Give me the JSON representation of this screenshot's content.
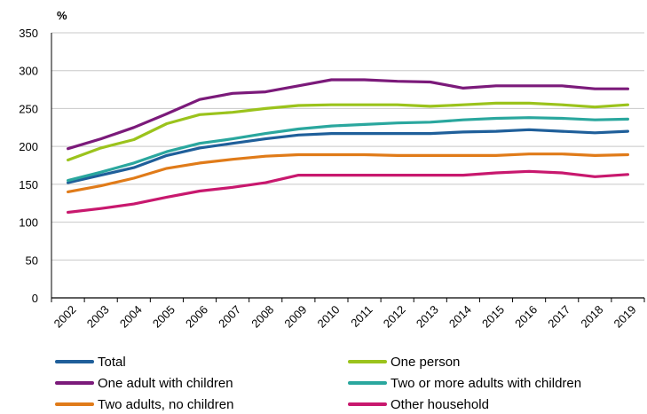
{
  "chart_data": {
    "type": "line",
    "unit_label": "%",
    "x": [
      "2002",
      "2003",
      "2004",
      "2005",
      "2006",
      "2007",
      "2008",
      "2009",
      "2010",
      "2011",
      "2012",
      "2013",
      "2014",
      "2015",
      "2016",
      "2017",
      "2018",
      "2019"
    ],
    "ylim": [
      0,
      350
    ],
    "yticks": [
      0,
      50,
      100,
      150,
      200,
      250,
      300,
      350
    ],
    "grid": true,
    "legend_position": "bottom",
    "series": [
      {
        "name": "Total",
        "color": "#1f5f9a",
        "values": [
          152,
          162,
          172,
          188,
          198,
          204,
          210,
          215,
          217,
          217,
          217,
          217,
          219,
          220,
          222,
          220,
          218,
          220
        ]
      },
      {
        "name": "One person",
        "color": "#9bc31c",
        "values": [
          182,
          198,
          209,
          230,
          242,
          245,
          250,
          254,
          255,
          255,
          255,
          253,
          255,
          257,
          257,
          255,
          252,
          255
        ]
      },
      {
        "name": "One adult with children",
        "color": "#7b1a7a",
        "values": [
          197,
          210,
          225,
          243,
          262,
          270,
          272,
          280,
          288,
          288,
          286,
          285,
          277,
          280,
          280,
          280,
          276,
          276
        ]
      },
      {
        "name": "Two or more adults with children",
        "color": "#2aa79e",
        "values": [
          155,
          166,
          178,
          193,
          204,
          210,
          217,
          223,
          227,
          229,
          231,
          232,
          235,
          237,
          238,
          237,
          235,
          236
        ]
      },
      {
        "name": "Two adults, no children",
        "color": "#e07b19",
        "values": [
          140,
          148,
          158,
          171,
          178,
          183,
          187,
          189,
          189,
          189,
          188,
          188,
          188,
          188,
          190,
          190,
          188,
          189
        ]
      },
      {
        "name": "Other household",
        "color": "#c8186e",
        "values": [
          113,
          118,
          124,
          133,
          141,
          146,
          152,
          162,
          162,
          162,
          162,
          162,
          162,
          165,
          167,
          165,
          160,
          163
        ]
      }
    ]
  }
}
